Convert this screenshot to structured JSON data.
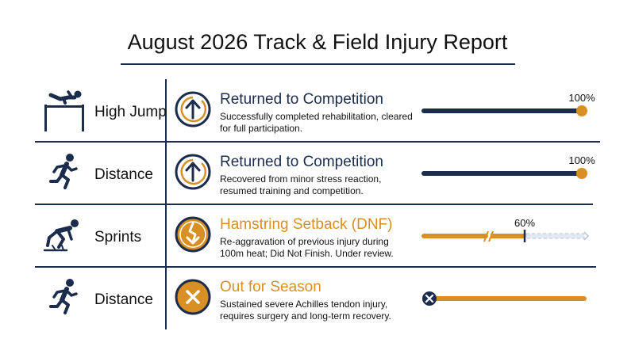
{
  "header": {
    "title": "August 2026 Track & Field Injury Report"
  },
  "colors": {
    "navy": "#1c2c4c",
    "orange": "#d88f24",
    "dashed": "#b9c2d6"
  },
  "rows": [
    {
      "sport": "High Jump",
      "sport_icon": "high-jump-icon",
      "status_icon": "arrow-up-circle-icon",
      "status": "Returned to Competition",
      "description": "Successfully completed rehabilitation, cleared for full participation.",
      "progress_label": "100%",
      "progress": 100
    },
    {
      "sport": "Distance",
      "sport_icon": "runner-icon",
      "status_icon": "arrow-up-circle-icon",
      "status": "Returned to Competition",
      "description": "Recovered from minor stress reaction, resumed training and competition.",
      "progress_label": "100%",
      "progress": 100
    },
    {
      "sport": "Sprints",
      "sport_icon": "sprint-start-icon",
      "status_icon": "injury-arrow-down-icon",
      "status": "Hamstring Setback (DNF)",
      "description": "Re-aggravation of previous injury during 100m heat; Did Not Finish. Under review.",
      "progress_label": "60%",
      "progress": 60
    },
    {
      "sport": "Distance",
      "sport_icon": "runner-icon",
      "status_icon": "x-circle-icon",
      "status": "Out for Season",
      "description": "Sustained severe Achilles tendon injury, requires surgery and long-term recovery.",
      "progress_label": "",
      "progress": 0
    }
  ]
}
